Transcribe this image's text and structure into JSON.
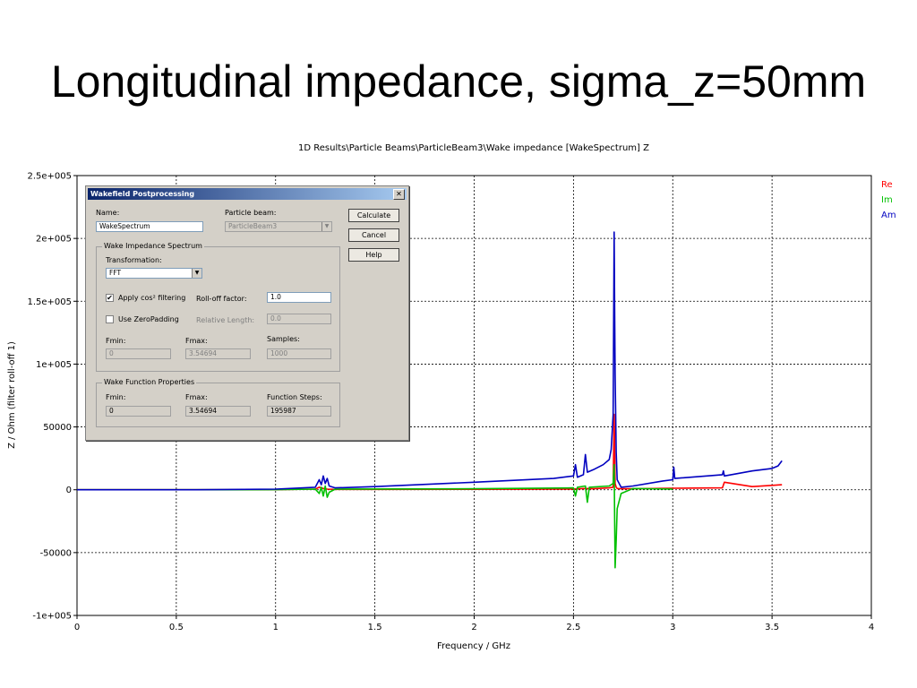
{
  "slide_title": "Longitudinal impedance, sigma_z=50mm",
  "chart_data": {
    "type": "line",
    "title": "1D Results\\Particle Beams\\ParticleBeam3\\Wake impedance [WakeSpectrum] Z",
    "xlabel": "Frequency / GHz",
    "ylabel": "Z / Ohm (filter roll-off 1)",
    "xlim": [
      0,
      4
    ],
    "ylim": [
      -100000,
      250000
    ],
    "grid": true,
    "legend_position": "top-right",
    "x_ticks": [
      0,
      0.5,
      1,
      1.5,
      2,
      2.5,
      3,
      3.5,
      4
    ],
    "x_tick_labels": [
      "0",
      "0.5",
      "1",
      "1.5",
      "2",
      "2.5",
      "3",
      "3.5",
      "4"
    ],
    "y_ticks": [
      -100000,
      -50000,
      0,
      50000,
      100000,
      150000,
      200000,
      250000
    ],
    "y_tick_labels": [
      "-1e+005",
      "-50000",
      "0",
      "50000",
      "1e+005",
      "1.5e+005",
      "2e+005",
      "2.5e+005"
    ],
    "series": [
      {
        "name": "Re",
        "color": "#ff0000",
        "x": [
          0,
          0.6,
          1.0,
          1.2,
          1.22,
          1.24,
          1.26,
          1.3,
          1.5,
          2.0,
          2.5,
          2.55,
          2.6,
          2.68,
          2.7,
          2.705,
          2.71,
          2.715,
          2.72,
          2.74,
          2.8,
          3.0,
          3.25,
          3.26,
          3.4,
          3.5,
          3.55
        ],
        "y": [
          0,
          0,
          100,
          500,
          2000,
          1000,
          500,
          300,
          300,
          400,
          600,
          1000,
          800,
          1500,
          2000,
          60000,
          5000,
          2000,
          1000,
          800,
          800,
          1200,
          1500,
          6000,
          2500,
          3500,
          4000
        ]
      },
      {
        "name": "Im",
        "color": "#00c000",
        "x": [
          0,
          0.6,
          1.0,
          1.2,
          1.22,
          1.23,
          1.24,
          1.25,
          1.26,
          1.27,
          1.3,
          2.0,
          2.5,
          2.51,
          2.52,
          2.56,
          2.57,
          2.58,
          2.68,
          2.7,
          2.705,
          2.71,
          2.715,
          2.72,
          2.74,
          2.8,
          3.0
        ],
        "y": [
          0,
          0,
          100,
          500,
          -3000,
          2000,
          -5000,
          3000,
          -6000,
          -2000,
          500,
          800,
          1500,
          -5000,
          2000,
          3000,
          -10000,
          2000,
          3000,
          5000,
          20000,
          -62000,
          -40000,
          -15000,
          -3000,
          1000,
          500
        ]
      },
      {
        "name": "Am",
        "color": "#0000c0",
        "x": [
          0,
          0.6,
          1.0,
          1.2,
          1.22,
          1.23,
          1.24,
          1.25,
          1.26,
          1.27,
          1.3,
          1.5,
          2.0,
          2.4,
          2.5,
          2.51,
          2.52,
          2.55,
          2.56,
          2.57,
          2.6,
          2.65,
          2.68,
          2.69,
          2.7,
          2.705,
          2.708,
          2.71,
          2.715,
          2.72,
          2.74,
          2.8,
          2.95,
          3.0,
          3.005,
          3.01,
          3.25,
          3.255,
          3.26,
          3.4,
          3.5,
          3.53,
          3.55
        ],
        "y": [
          0,
          0,
          500,
          2000,
          8000,
          4000,
          11000,
          5000,
          9000,
          3000,
          1500,
          2500,
          6000,
          9000,
          11000,
          20000,
          10000,
          12000,
          28000,
          14000,
          16000,
          20000,
          24000,
          32000,
          60000,
          205000,
          130000,
          92000,
          30000,
          8000,
          2000,
          3000,
          7000,
          8000,
          18000,
          9000,
          12000,
          15000,
          11000,
          15000,
          17000,
          19000,
          23000
        ]
      }
    ]
  },
  "dialog": {
    "title": "Wakefield Postprocessing",
    "close_glyph": "✕",
    "name_label": "Name:",
    "name_value": "WakeSpectrum",
    "particle_beam_label": "Particle beam:",
    "particle_beam_value": "ParticleBeam3",
    "calculate_label": "Calculate",
    "cancel_label": "Cancel",
    "help_label": "Help",
    "spectrum_group": "Wake Impedance Spectrum",
    "transformation_label": "Transformation:",
    "transformation_value": "FFT",
    "cos_filter_label": "Apply cos² filtering",
    "cos_filter_checked": "✔",
    "rolloff_label": "Roll-off factor:",
    "rolloff_value": "1.0",
    "zeropadding_label": "Use ZeroPadding",
    "relative_length_label": "Relative Length:",
    "relative_length_value": "0.0",
    "fmin_label": "Fmin:",
    "fmin_value": "0",
    "fmax_label": "Fmax:",
    "fmax_value": "3.54694",
    "samples_label": "Samples:",
    "samples_value": "1000",
    "function_group": "Wake Function Properties",
    "wf_fmin_label": "Fmin:",
    "wf_fmin_value": "0",
    "wf_fmax_label": "Fmax:",
    "wf_fmax_value": "3.54694",
    "function_steps_label": "Function Steps:",
    "function_steps_value": "195987"
  }
}
